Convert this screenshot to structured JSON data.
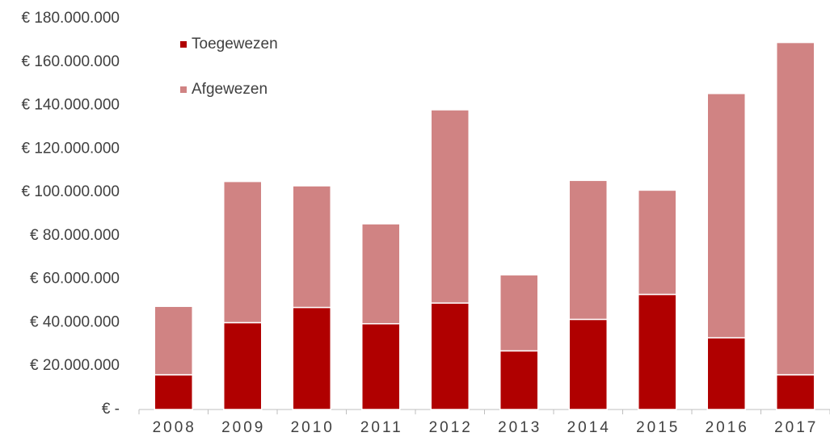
{
  "chart_data": {
    "type": "stacked-bar",
    "categories": [
      "2008",
      "2009",
      "2010",
      "2011",
      "2012",
      "2013",
      "2014",
      "2015",
      "2016",
      "2017"
    ],
    "series": [
      {
        "name": "Toegewezen",
        "color": "#b00000",
        "values": [
          16000000,
          40000000,
          47000000,
          39500000,
          49000000,
          27000000,
          41500000,
          53000000,
          33000000,
          16000000
        ]
      },
      {
        "name": "Afgewezen",
        "color": "#d08383",
        "values": [
          31500000,
          65000000,
          56000000,
          46000000,
          89000000,
          35000000,
          64000000,
          48000000,
          112500000,
          153000000
        ]
      }
    ],
    "ylim": [
      0,
      180000000
    ],
    "yticks": [
      {
        "value": 0,
        "label": "€ -"
      },
      {
        "value": 20000000,
        "label": "€ 20.000.000"
      },
      {
        "value": 40000000,
        "label": "€ 40.000.000"
      },
      {
        "value": 60000000,
        "label": "€ 60.000.000"
      },
      {
        "value": 80000000,
        "label": "€ 80.000.000"
      },
      {
        "value": 100000000,
        "label": "€ 100.000.000"
      },
      {
        "value": 120000000,
        "label": "€ 120.000.000"
      },
      {
        "value": 140000000,
        "label": "€ 140.000.000"
      },
      {
        "value": 160000000,
        "label": "€ 160.000.000"
      },
      {
        "value": 180000000,
        "label": "€ 180.000.000"
      }
    ],
    "grid": false,
    "legend": "upper-left"
  }
}
